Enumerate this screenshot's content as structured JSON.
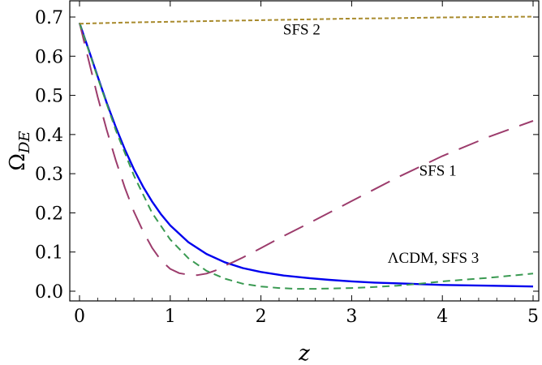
{
  "chart_data": {
    "type": "line",
    "title": "",
    "xlabel": "z",
    "ylabel": "Ω",
    "ylabel_sub": "DE",
    "xlim": [
      0,
      5
    ],
    "ylim": [
      0,
      0.7
    ],
    "xticks": [
      0,
      1,
      2,
      3,
      4,
      5
    ],
    "yticks": [
      0.0,
      0.1,
      0.2,
      0.3,
      0.4,
      0.5,
      0.6,
      0.7
    ],
    "ytick_labels": [
      "0.0",
      "0.1",
      "0.2",
      "0.3",
      "0.4",
      "0.5",
      "0.6",
      "0.7"
    ],
    "grid": false,
    "legend": "none",
    "annotations": [
      {
        "text": "SFS 2",
        "x": 2.45,
        "y": 0.655
      },
      {
        "text": "SFS 1",
        "x": 3.95,
        "y": 0.295
      },
      {
        "text": "ΛCDM, SFS 3",
        "x": 3.9,
        "y": 0.072
      }
    ],
    "series": [
      {
        "color": "#0000ee",
        "style": "solid",
        "x": [
          0,
          0.1,
          0.2,
          0.3,
          0.4,
          0.5,
          0.6,
          0.7,
          0.8,
          0.9,
          1.0,
          1.2,
          1.4,
          1.6,
          1.8,
          2.0,
          2.25,
          2.5,
          2.75,
          3.0,
          3.25,
          3.5,
          3.75,
          4.0,
          4.5,
          5.0
        ],
        "y": [
          0.685,
          0.617,
          0.548,
          0.481,
          0.419,
          0.362,
          0.311,
          0.267,
          0.229,
          0.196,
          0.168,
          0.125,
          0.095,
          0.074,
          0.059,
          0.049,
          0.04,
          0.034,
          0.029,
          0.025,
          0.022,
          0.02,
          0.018,
          0.016,
          0.014,
          0.012
        ]
      },
      {
        "color": "#9c3c6c",
        "style": "longdash",
        "x": [
          0,
          0.1,
          0.2,
          0.3,
          0.4,
          0.5,
          0.6,
          0.7,
          0.8,
          0.9,
          1.0,
          1.1,
          1.2,
          1.3,
          1.4,
          1.5,
          1.6,
          1.7,
          1.8,
          2.0,
          2.2,
          2.5,
          3.0,
          3.5,
          4.0,
          4.5,
          5.0
        ],
        "y": [
          0.685,
          0.59,
          0.496,
          0.412,
          0.334,
          0.264,
          0.203,
          0.153,
          0.111,
          0.078,
          0.057,
          0.046,
          0.042,
          0.041,
          0.045,
          0.053,
          0.065,
          0.075,
          0.086,
          0.11,
          0.135,
          0.17,
          0.23,
          0.29,
          0.345,
          0.393,
          0.435
        ]
      },
      {
        "color": "#3a9a52",
        "style": "dash",
        "x": [
          0,
          0.2,
          0.4,
          0.6,
          0.8,
          1.0,
          1.2,
          1.4,
          1.6,
          1.8,
          2.0,
          2.2,
          2.4,
          2.6,
          2.8,
          3.0,
          3.2,
          3.5,
          3.8,
          4.0,
          4.5,
          5.0
        ],
        "y": [
          0.685,
          0.545,
          0.411,
          0.295,
          0.2,
          0.132,
          0.084,
          0.052,
          0.032,
          0.019,
          0.012,
          0.008,
          0.006,
          0.006,
          0.007,
          0.008,
          0.01,
          0.014,
          0.02,
          0.025,
          0.034,
          0.045
        ]
      },
      {
        "color": "#a88a2c",
        "style": "shortdash",
        "x": [
          0,
          0.5,
          1.0,
          1.5,
          2.0,
          2.5,
          3.0,
          3.5,
          4.0,
          4.5,
          5.0
        ],
        "y": [
          0.683,
          0.686,
          0.688,
          0.69,
          0.692,
          0.694,
          0.696,
          0.697,
          0.699,
          0.7,
          0.701
        ]
      }
    ]
  }
}
